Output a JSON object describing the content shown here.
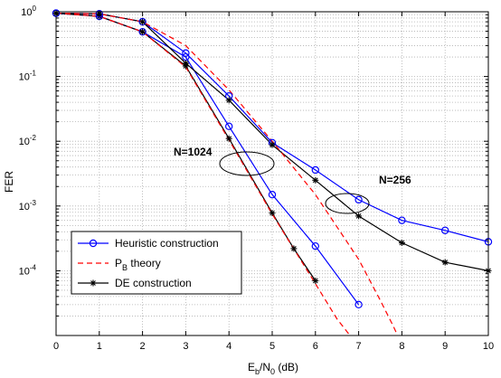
{
  "chart_data": {
    "type": "line",
    "xlabel_main": "E",
    "xlabel_sub_b": "b",
    "xlabel_mid": "/N",
    "xlabel_sub_0": "0",
    "xlabel_tail": " (dB)",
    "ylabel": "FER",
    "xlim": [
      0,
      10
    ],
    "ylim": [
      1e-05,
      1
    ],
    "yscale": "log",
    "grid": true,
    "legend_position": "bottom-left",
    "x_ticks": [
      "0",
      "1",
      "2",
      "3",
      "4",
      "5",
      "6",
      "7",
      "8",
      "9",
      "10"
    ],
    "y_ticks": [
      {
        "base": "10",
        "exp": "0",
        "value": 1
      },
      {
        "base": "10",
        "exp": "-1",
        "value": 0.1
      },
      {
        "base": "10",
        "exp": "-2",
        "value": 0.01
      },
      {
        "base": "10",
        "exp": "-3",
        "value": 0.001
      },
      {
        "base": "10",
        "exp": "-4",
        "value": 0.0001
      }
    ],
    "legend": {
      "heuristic": "Heuristic construction",
      "pb_main": "P",
      "pb_sub": "B",
      "pb_tail": " theory",
      "de": "DE construction"
    },
    "annotations": {
      "n1024": "N=1024",
      "n256": "N=256"
    },
    "colors": {
      "heuristic": "#0000ff",
      "theory": "#ff0000",
      "de": "#000000",
      "grid": "#b0b0b0"
    },
    "series": [
      {
        "key": "heuristic_1024",
        "style": "heuristic",
        "points": [
          [
            0,
            0.95
          ],
          [
            1,
            0.85
          ],
          [
            2,
            0.49
          ],
          [
            3,
            0.2
          ],
          [
            4,
            0.017
          ],
          [
            5,
            0.0015
          ],
          [
            6,
            0.00024
          ],
          [
            7,
            3e-05
          ]
        ]
      },
      {
        "key": "de_1024",
        "style": "de",
        "points": [
          [
            0,
            0.95
          ],
          [
            1,
            0.85
          ],
          [
            2,
            0.49
          ],
          [
            3,
            0.145
          ],
          [
            4,
            0.011
          ],
          [
            5,
            0.00078
          ],
          [
            5.5,
            0.00022
          ],
          [
            6,
            7e-05
          ]
        ]
      },
      {
        "key": "theory_1024",
        "style": "theory",
        "points": [
          [
            0,
            0.95
          ],
          [
            1,
            0.85
          ],
          [
            2,
            0.49
          ],
          [
            3,
            0.14
          ],
          [
            4,
            0.0105
          ],
          [
            5,
            0.00075
          ],
          [
            6,
            6.3e-05
          ],
          [
            6.5,
            1.8e-05
          ],
          [
            6.8,
            1e-05
          ]
        ]
      },
      {
        "key": "heuristic_256",
        "style": "heuristic",
        "points": [
          [
            0,
            0.95
          ],
          [
            1,
            0.93
          ],
          [
            2,
            0.7
          ],
          [
            3,
            0.23
          ],
          [
            4,
            0.05
          ],
          [
            5,
            0.0095
          ],
          [
            6,
            0.0036
          ],
          [
            7,
            0.00125
          ],
          [
            8,
            0.0006
          ],
          [
            9,
            0.00042
          ],
          [
            10,
            0.00028
          ]
        ]
      },
      {
        "key": "de_256",
        "style": "de",
        "points": [
          [
            0,
            0.95
          ],
          [
            1,
            0.93
          ],
          [
            2,
            0.7
          ],
          [
            3,
            0.16
          ],
          [
            4,
            0.043
          ],
          [
            5,
            0.0088
          ],
          [
            6,
            0.0025
          ],
          [
            7,
            0.0007
          ],
          [
            8,
            0.00027
          ],
          [
            9,
            0.000135
          ],
          [
            10,
            0.0001
          ]
        ]
      },
      {
        "key": "theory_256",
        "style": "theory",
        "points": [
          [
            0,
            0.95
          ],
          [
            1,
            0.93
          ],
          [
            2,
            0.7
          ],
          [
            3,
            0.3
          ],
          [
            4,
            0.062
          ],
          [
            5,
            0.01
          ],
          [
            6,
            0.0015
          ],
          [
            7,
            0.00015
          ],
          [
            7.5,
            3.5e-05
          ],
          [
            7.8,
            1.4e-05
          ],
          [
            7.9,
            1e-05
          ]
        ]
      }
    ]
  }
}
